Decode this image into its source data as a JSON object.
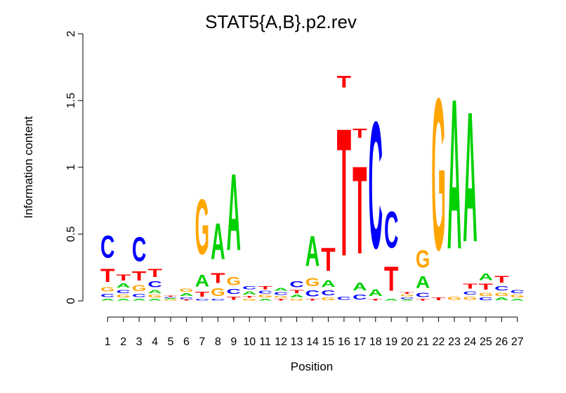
{
  "chart_data": {
    "type": "sequence-logo",
    "title": "STAT5{A,B}.p2.rev",
    "xlabel": "Position",
    "ylabel": "Information content",
    "ylim": [
      0,
      2
    ],
    "yticks": [
      "0",
      "0.5",
      "1",
      "1.5",
      "2"
    ],
    "positions": [
      "1",
      "2",
      "3",
      "4",
      "5",
      "6",
      "7",
      "8",
      "9",
      "10",
      "11",
      "12",
      "13",
      "14",
      "15",
      "16",
      "17",
      "18",
      "19",
      "20",
      "21",
      "22",
      "23",
      "24",
      "25",
      "26",
      "27"
    ],
    "colors": {
      "A": "#00d000",
      "C": "#0000ff",
      "G": "#ffa500",
      "T": "#ff0000"
    },
    "columns": [
      [
        [
          "A",
          0.02
        ],
        [
          "C",
          0.04
        ],
        [
          "G",
          0.05
        ],
        [
          "T",
          0.16
        ],
        [
          "C",
          0.27
        ]
      ],
      [
        [
          "A",
          0.02
        ],
        [
          "G",
          0.03
        ],
        [
          "C",
          0.04
        ],
        [
          "A",
          0.05
        ],
        [
          "T",
          0.07
        ]
      ],
      [
        [
          "A",
          0.02
        ],
        [
          "C",
          0.04
        ],
        [
          "G",
          0.07
        ],
        [
          "T",
          0.11
        ],
        [
          "C",
          0.29
        ]
      ],
      [
        [
          "A",
          0.02
        ],
        [
          "G",
          0.03
        ],
        [
          "A",
          0.04
        ],
        [
          "C",
          0.07
        ],
        [
          "T",
          0.1
        ]
      ],
      [
        [
          "G",
          0.01
        ],
        [
          "A",
          0.01
        ],
        [
          "C",
          0.01
        ],
        [
          "T",
          0.01
        ]
      ],
      [
        [
          "T",
          0.01
        ],
        [
          "C",
          0.02
        ],
        [
          "A",
          0.03
        ],
        [
          "G",
          0.04
        ]
      ],
      [
        [
          "C",
          0.02
        ],
        [
          "T",
          0.06
        ],
        [
          "A",
          0.14
        ],
        [
          "G",
          0.66
        ]
      ],
      [
        [
          "C",
          0.02
        ],
        [
          "G",
          0.09
        ],
        [
          "T",
          0.12
        ],
        [
          "A",
          0.43
        ]
      ],
      [
        [
          "T",
          0.04
        ],
        [
          "C",
          0.06
        ],
        [
          "G",
          0.1
        ],
        [
          "A",
          0.92
        ]
      ],
      [
        [
          "G",
          0.02
        ],
        [
          "T",
          0.02
        ],
        [
          "A",
          0.04
        ],
        [
          "C",
          0.04
        ]
      ],
      [
        [
          "A",
          0.02
        ],
        [
          "G",
          0.03
        ],
        [
          "C",
          0.03
        ],
        [
          "T",
          0.04
        ]
      ],
      [
        [
          "T",
          0.02
        ],
        [
          "G",
          0.02
        ],
        [
          "C",
          0.03
        ],
        [
          "A",
          0.03
        ]
      ],
      [
        [
          "G",
          0.02
        ],
        [
          "A",
          0.03
        ],
        [
          "T",
          0.04
        ],
        [
          "C",
          0.07
        ]
      ],
      [
        [
          "T",
          0.02
        ],
        [
          "C",
          0.07
        ],
        [
          "G",
          0.1
        ],
        [
          "A",
          0.36
        ]
      ],
      [
        [
          "G",
          0.03
        ],
        [
          "C",
          0.06
        ],
        [
          "A",
          0.08
        ],
        [
          "T",
          0.28
        ]
      ],
      [
        [
          "C",
          0.04
        ],
        [
          "T",
          1.53
        ],
        [
          "T",
          0.14
        ]
      ],
      [
        [
          "C",
          0.06
        ],
        [
          "A",
          0.09
        ],
        [
          "T",
          1.05
        ],
        [
          "T",
          0.11
        ]
      ],
      [
        [
          "T",
          0.02
        ],
        [
          "A",
          0.08
        ],
        [
          "C",
          1.52
        ]
      ],
      [
        [
          "A",
          0.02
        ],
        [
          "T",
          0.29
        ],
        [
          "C",
          0.44
        ]
      ],
      [
        [
          "A",
          0.01
        ],
        [
          "C",
          0.02
        ],
        [
          "G",
          0.02
        ],
        [
          "T",
          0.02
        ]
      ],
      [
        [
          "T",
          0.02
        ],
        [
          "C",
          0.05
        ],
        [
          "A",
          0.14
        ],
        [
          "G",
          0.21
        ]
      ],
      [
        [
          "T",
          0.03
        ],
        [
          "G",
          1.82
        ]
      ],
      [
        [
          "G",
          0.04
        ],
        [
          "A",
          1.8
        ]
      ],
      [
        [
          "G",
          0.04
        ],
        [
          "C",
          0.04
        ],
        [
          "T",
          0.06
        ],
        [
          "A",
          1.56
        ]
      ],
      [
        [
          "C",
          0.03
        ],
        [
          "G",
          0.04
        ],
        [
          "T",
          0.07
        ],
        [
          "A",
          0.08
        ]
      ],
      [
        [
          "A",
          0.03
        ],
        [
          "G",
          0.04
        ],
        [
          "C",
          0.05
        ],
        [
          "T",
          0.08
        ]
      ],
      [
        [
          "A",
          0.02
        ],
        [
          "G",
          0.03
        ],
        [
          "C",
          0.04
        ]
      ]
    ]
  }
}
